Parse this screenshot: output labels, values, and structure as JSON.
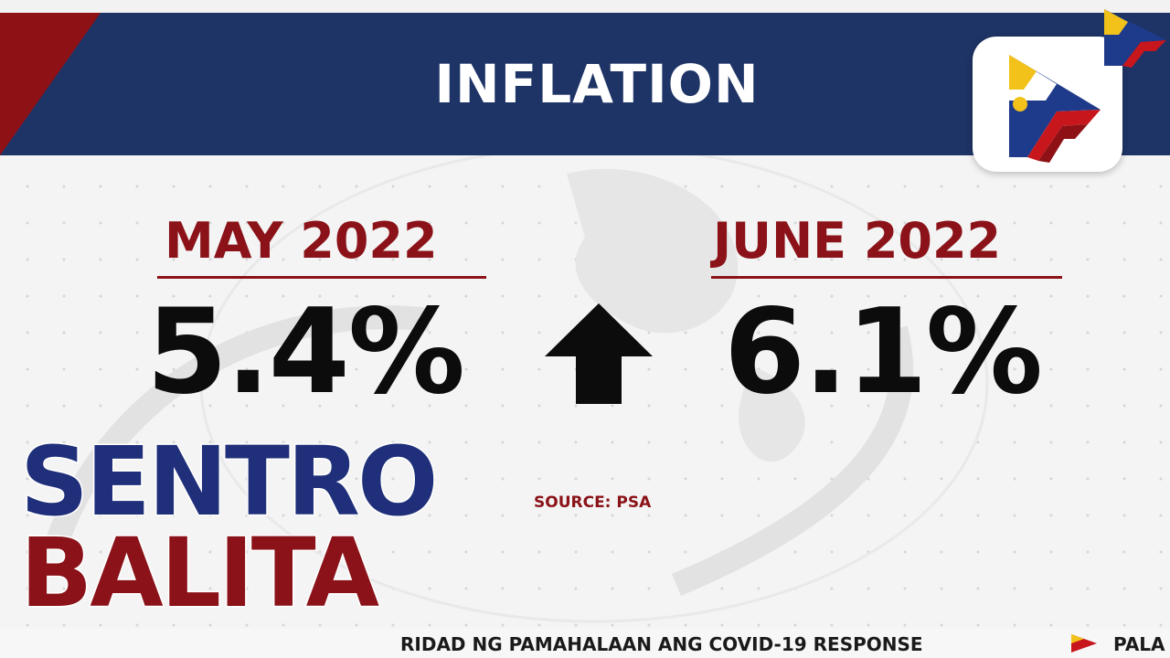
{
  "header": {
    "title": "INFLATION"
  },
  "comparison": {
    "before": {
      "period": "MAY 2022",
      "value": "5.4%"
    },
    "after": {
      "period": "JUNE 2022",
      "value": "6.1%"
    },
    "trend": "up-arrow-icon"
  },
  "source": "SOURCE: PSA",
  "brand": {
    "line1": "SENTRO",
    "line2": "BALITA"
  },
  "ticker": {
    "text": "RIDAD NG PAMAHALAAN ANG COVID-19 RESPONSE",
    "next": "PALA"
  },
  "colors": {
    "header_blue": "#1e3466",
    "accent_red": "#8a1218",
    "brand_blue": "#1f2f7a",
    "value_black": "#0c0c0c"
  }
}
